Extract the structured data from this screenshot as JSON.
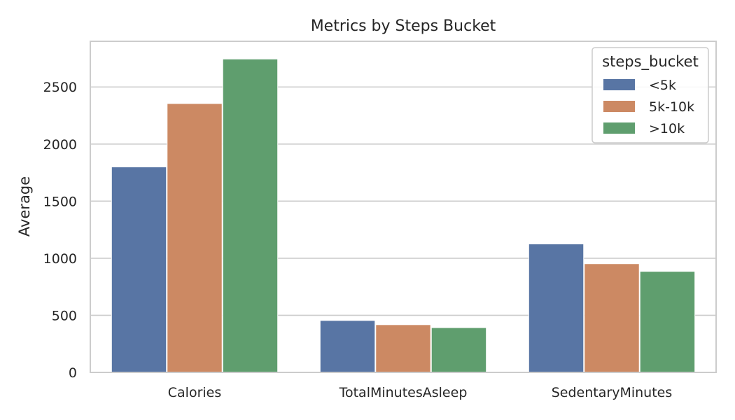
{
  "chart_data": {
    "type": "bar",
    "title": "Metrics by Steps Bucket",
    "xlabel": "",
    "ylabel": "Average",
    "categories": [
      "Calories",
      "TotalMinutesAsleep",
      "SedentaryMinutes"
    ],
    "series": [
      {
        "name": "<5k",
        "values": [
          1800,
          455,
          1125
        ],
        "color": "#5875a4"
      },
      {
        "name": "5k-10k",
        "values": [
          2355,
          418,
          952
        ],
        "color": "#cc8963"
      },
      {
        "name": ">10k",
        "values": [
          2745,
          392,
          885
        ],
        "color": "#5f9e6e"
      }
    ],
    "ylim": [
      0,
      2900
    ],
    "yticks": [
      0,
      500,
      1000,
      1500,
      2000,
      2500
    ],
    "grid": "horizontal",
    "legend": {
      "title": "steps_bucket",
      "placement": "top-right"
    }
  }
}
